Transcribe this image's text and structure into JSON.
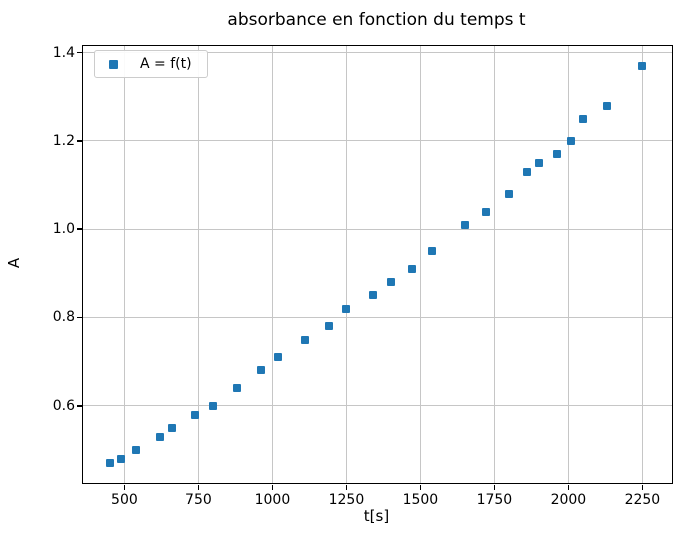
{
  "title": "absorbance en fonction du temps t",
  "colors": {
    "accent": "#1f77b4",
    "grid": "#c6c6c6",
    "spine": "#000000",
    "background": "#ffffff",
    "legend_border": "#cccccc",
    "text": "#000000"
  },
  "chart_data": {
    "type": "scatter",
    "title": "absorbance en fonction du temps t",
    "xlabel": "t[s]",
    "ylabel": "A",
    "xlim": [
      360,
      2350
    ],
    "ylim": [
      0.425,
      1.415
    ],
    "xticks": [
      500,
      750,
      1000,
      1250,
      1500,
      1750,
      2000,
      2250
    ],
    "xtick_labels": [
      "500",
      "750",
      "1000",
      "1250",
      "1500",
      "1750",
      "2000",
      "2250"
    ],
    "yticks": [
      0.6,
      0.8,
      1.0,
      1.2,
      1.4
    ],
    "ytick_labels": [
      "0.6",
      "0.8",
      "1.0",
      "1.2",
      "1.4"
    ],
    "grid": true,
    "legend_position": "upper left",
    "series": [
      {
        "name": "A = f(t)",
        "marker": "square",
        "color": "#1f77b4",
        "points": [
          [
            450,
            0.47
          ],
          [
            490,
            0.48
          ],
          [
            540,
            0.5
          ],
          [
            620,
            0.53
          ],
          [
            660,
            0.55
          ],
          [
            740,
            0.58
          ],
          [
            800,
            0.6
          ],
          [
            880,
            0.64
          ],
          [
            960,
            0.68
          ],
          [
            1020,
            0.71
          ],
          [
            1110,
            0.75
          ],
          [
            1190,
            0.78
          ],
          [
            1250,
            0.82
          ],
          [
            1340,
            0.85
          ],
          [
            1400,
            0.88
          ],
          [
            1470,
            0.91
          ],
          [
            1540,
            0.95
          ],
          [
            1650,
            1.01
          ],
          [
            1720,
            1.04
          ],
          [
            1800,
            1.08
          ],
          [
            1860,
            1.13
          ],
          [
            1900,
            1.15
          ],
          [
            1960,
            1.17
          ],
          [
            2010,
            1.2
          ],
          [
            2050,
            1.25
          ],
          [
            2130,
            1.28
          ],
          [
            2250,
            1.37
          ]
        ]
      }
    ]
  }
}
